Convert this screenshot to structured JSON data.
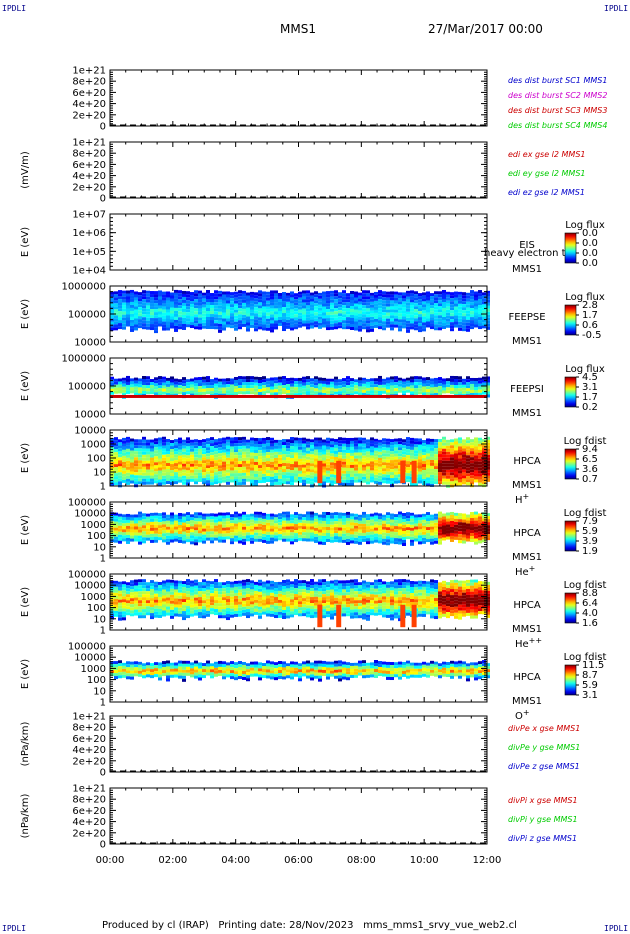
{
  "header": {
    "corner_tl": "IPDLI",
    "corner_tr": "IPDLI",
    "corner_bl": "IPDLI",
    "corner_br": "IPDLI",
    "title": "MMS1",
    "date": "27/Mar/2017 00:00"
  },
  "footer": {
    "produced_by": "Produced by cl (IRAP)",
    "printing_date": "Printing date: 28/Nov/2023",
    "script": "mms_mms1_srvy_vue_web2.cl"
  },
  "colors": {
    "mms1": "#0000cc",
    "mms2": "#cc00cc",
    "mms3": "#cc0000",
    "mms4": "#00cc00",
    "x": "#cc0000",
    "y": "#00cc00",
    "z": "#0000cc"
  },
  "chart_data": {
    "type": "heatmap",
    "x_ticks": [
      "00:00",
      "02:00",
      "04:00",
      "06:00",
      "08:00",
      "10:00",
      "12:00"
    ],
    "xlim": [
      "00:00",
      "12:00"
    ],
    "panels": [
      {
        "kind": "line",
        "ylabel": "",
        "yticks": [
          "1e+21",
          "8e+20",
          "6e+20",
          "4e+20",
          "2e+20",
          "0"
        ],
        "legend": [
          {
            "text": "des dist burst SC1 MMS1",
            "color": "#0000cc"
          },
          {
            "text": "des dist burst SC2 MMS2",
            "color": "#cc00cc"
          },
          {
            "text": "des dist burst SC3 MMS3",
            "color": "#cc0000"
          },
          {
            "text": "des dist burst SC4 MMS4",
            "color": "#00cc00"
          }
        ]
      },
      {
        "kind": "line",
        "ylabel": "(mV/m)",
        "yticks": [
          "1e+21",
          "8e+20",
          "6e+20",
          "4e+20",
          "2e+20",
          "0"
        ],
        "legend": [
          {
            "text": "edi ex gse l2 MMS1",
            "color": "#cc0000"
          },
          {
            "text": "edi ey gse l2 MMS1",
            "color": "#00cc00"
          },
          {
            "text": "edi ez gse l2 MMS1",
            "color": "#0000cc"
          }
        ]
      },
      {
        "kind": "spec",
        "ylabel": "E (eV)",
        "yticks": [
          "1e+07",
          "1e+06",
          "1e+05",
          "1e+04"
        ],
        "instrument": "EIS",
        "overlay": "heavy electron to",
        "sc": "MMS1",
        "species": "",
        "cb_title": "Log flux",
        "cb_ticks": [
          "0.0",
          "0.0",
          "0.0",
          "0.0"
        ],
        "empty": true
      },
      {
        "kind": "spec",
        "ylabel": "E (eV)",
        "yticks": [
          "1000000",
          "100000",
          "10000"
        ],
        "instrument": "FEEPSE",
        "sc": "MMS1",
        "species": "",
        "cb_title": "Log flux",
        "cb_ticks": [
          "2.8",
          "1.7",
          "0.6",
          "-0.5"
        ]
      },
      {
        "kind": "spec",
        "ylabel": "E (eV)",
        "yticks": [
          "1000000",
          "100000",
          "10000"
        ],
        "instrument": "FEEPSI",
        "sc": "MMS1",
        "species": "",
        "cb_title": "Log flux",
        "cb_ticks": [
          "4.5",
          "3.1",
          "1.7",
          "0.2"
        ]
      },
      {
        "kind": "spec",
        "ylabel": "E (eV)",
        "yticks": [
          "10000",
          "1000",
          "100",
          "10",
          "1"
        ],
        "instrument": "HPCA",
        "sc": "MMS1",
        "species": "H+",
        "cb_title": "Log fdist",
        "cb_ticks": [
          "9.4",
          "6.5",
          "3.6",
          "0.7"
        ]
      },
      {
        "kind": "spec",
        "ylabel": "E (eV)",
        "yticks": [
          "100000",
          "10000",
          "1000",
          "100",
          "10",
          "1"
        ],
        "instrument": "HPCA",
        "sc": "MMS1",
        "species": "He+",
        "cb_title": "Log fdist",
        "cb_ticks": [
          "7.9",
          "5.9",
          "3.9",
          "1.9"
        ]
      },
      {
        "kind": "spec",
        "ylabel": "E (eV)",
        "yticks": [
          "100000",
          "10000",
          "1000",
          "100",
          "10",
          "1"
        ],
        "instrument": "HPCA",
        "sc": "MMS1",
        "species": "He++",
        "cb_title": "Log fdist",
        "cb_ticks": [
          "8.8",
          "6.4",
          "4.0",
          "1.6"
        ]
      },
      {
        "kind": "spec",
        "ylabel": "E (eV)",
        "yticks": [
          "100000",
          "10000",
          "1000",
          "100",
          "10",
          "1"
        ],
        "instrument": "HPCA",
        "sc": "MMS1",
        "species": "O+",
        "cb_title": "Log fdist",
        "cb_ticks": [
          "11.5",
          "8.7",
          "5.9",
          "3.1"
        ]
      },
      {
        "kind": "line",
        "ylabel": "(nPa/km)",
        "yticks": [
          "1e+21",
          "8e+20",
          "6e+20",
          "4e+20",
          "2e+20",
          "0"
        ],
        "legend": [
          {
            "text": "divPe x gse MMS1",
            "color": "#cc0000"
          },
          {
            "text": "divPe y gse MMS1",
            "color": "#00cc00"
          },
          {
            "text": "divPe z gse MMS1",
            "color": "#0000cc"
          }
        ]
      },
      {
        "kind": "line",
        "ylabel": "(nPa/km)",
        "yticks": [
          "1e+21",
          "8e+20",
          "6e+20",
          "4e+20",
          "2e+20",
          "0"
        ],
        "legend": [
          {
            "text": "divPi x gse MMS1",
            "color": "#cc0000"
          },
          {
            "text": "divPi y gse MMS1",
            "color": "#00cc00"
          },
          {
            "text": "divPi z gse MMS1",
            "color": "#0000cc"
          }
        ]
      }
    ]
  }
}
